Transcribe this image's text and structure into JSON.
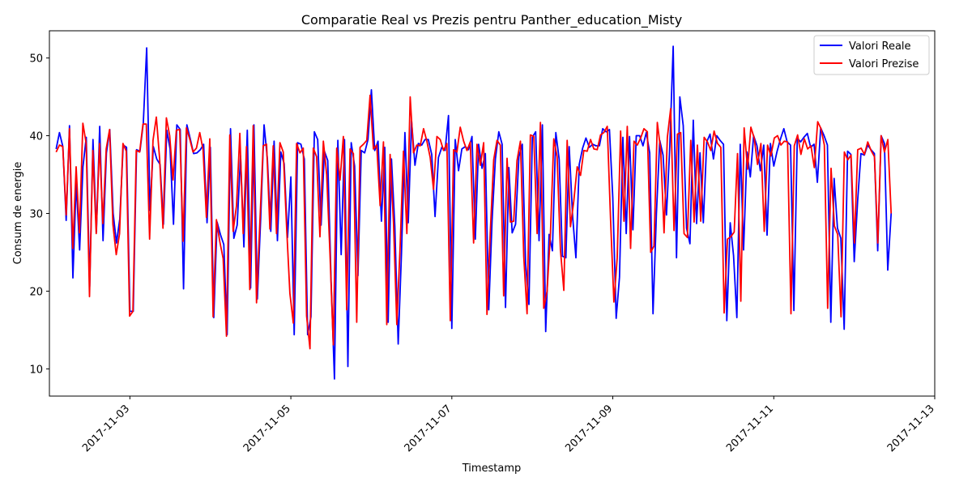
{
  "chart_data": {
    "type": "line",
    "title": "Comparatie Real vs Prezis pentru Panther_education_Misty",
    "xlabel": "Timestamp",
    "ylabel": "Consum de energie",
    "x_tick_labels": [
      "2017-11-03",
      "2017-11-05",
      "2017-11-07",
      "2017-11-09",
      "2017-11-11",
      "2017-11-13"
    ],
    "y_ticks": [
      10,
      20,
      30,
      40,
      50
    ],
    "xlim": [
      "2017-11-02T00:00",
      "2017-11-13T00:00"
    ],
    "ylim": [
      6.5,
      53.5
    ],
    "legend_position": "upper right",
    "grid": false,
    "x_start": "2017-11-02T02:00",
    "x_end": "2017-11-12T11:00",
    "series": [
      {
        "name": "Valori Reale",
        "color": "#0000ff",
        "values": [
          38.3,
          40.4,
          38.6,
          29.1,
          41.3,
          21.7,
          34.0,
          25.3,
          36.0,
          39.8,
          20.6,
          39.5,
          27.6,
          41.2,
          26.5,
          37.8,
          40.8,
          30.0,
          26.2,
          29.3,
          38.8,
          38.5,
          17.4,
          17.4,
          38.2,
          38.0,
          41.6,
          51.3,
          30.4,
          38.6,
          37.0,
          36.3,
          28.6,
          40.7,
          38.3,
          28.6,
          41.4,
          40.8,
          20.3,
          41.4,
          39.6,
          37.7,
          37.8,
          38.2,
          38.9,
          28.8,
          38.5,
          16.6,
          28.9,
          27.3,
          26.0,
          14.4,
          40.9,
          26.8,
          28.5,
          37.4,
          25.7,
          40.7,
          20.4,
          41.4,
          19.0,
          29.3,
          41.4,
          37.0,
          27.7,
          39.3,
          26.5,
          37.9,
          36.4,
          26.9,
          34.7,
          14.4,
          39.1,
          38.9,
          37.0,
          14.4,
          16.7,
          40.5,
          39.5,
          28.5,
          38.0,
          36.8,
          21.2,
          8.7,
          39.4,
          24.7,
          39.5,
          10.3,
          39.1,
          36.1,
          22.0,
          38.1,
          37.8,
          39.5,
          45.9,
          38.1,
          39.3,
          29.0,
          38.5,
          16.0,
          37.0,
          28.4,
          13.2,
          25.0,
          40.4,
          28.8,
          41.9,
          36.2,
          39.0,
          38.8,
          39.5,
          39.5,
          37.6,
          29.6,
          37.2,
          38.5,
          38.1,
          42.6,
          15.2,
          39.5,
          35.5,
          38.3,
          38.6,
          38.2,
          39.9,
          26.7,
          38.9,
          35.8,
          37.7,
          17.6,
          29.1,
          37.0,
          40.5,
          38.9,
          17.9,
          35.9,
          27.5,
          28.6,
          37.3,
          38.9,
          23.5,
          18.3,
          39.8,
          40.5,
          26.5,
          41.4,
          14.8,
          27.3,
          25.2,
          40.4,
          37.0,
          24.5,
          24.3,
          38.6,
          29.7,
          24.3,
          36.3,
          38.4,
          39.7,
          38.5,
          38.9,
          38.7,
          38.7,
          40.9,
          40.5,
          40.8,
          32.1,
          16.5,
          21.8,
          39.8,
          27.4,
          39.9,
          27.9,
          40.0,
          40.0,
          38.7,
          40.4,
          37.8,
          17.1,
          30.0,
          39.4,
          37.5,
          29.8,
          38.6,
          51.5,
          24.3,
          45.0,
          41.3,
          28.1,
          26.1,
          42.0,
          28.7,
          37.8,
          28.8,
          39.2,
          40.2,
          37.0,
          40.0,
          39.4,
          38.9,
          16.2,
          28.8,
          24.6,
          16.6,
          38.9,
          25.3,
          37.9,
          34.7,
          40.0,
          38.7,
          35.5,
          38.8,
          27.2,
          39.0,
          36.1,
          38.0,
          39.6,
          40.9,
          39.2,
          38.8,
          17.5,
          39.7,
          39.2,
          39.8,
          40.3,
          38.5,
          38.9,
          34.0,
          41.0,
          40.0,
          38.8,
          16.0,
          34.5,
          28.1,
          26.8,
          15.1,
          38.0,
          37.6,
          23.8,
          31.6,
          37.7,
          37.5,
          38.8,
          38.2,
          37.7,
          25.2,
          40.0,
          39.0,
          22.7,
          30.0
        ]
      },
      {
        "name": "Valori Prezise",
        "color": "#ff0000",
        "values": [
          37.9,
          38.8,
          38.6,
          29.8,
          40.9,
          25.5,
          36.0,
          27.5,
          41.6,
          39.0,
          19.3,
          38.1,
          27.4,
          39.0,
          28.7,
          38.3,
          40.8,
          28.6,
          24.7,
          27.4,
          39.0,
          38.0,
          16.8,
          17.4,
          38.1,
          37.9,
          41.5,
          41.5,
          26.7,
          39.4,
          42.4,
          37.0,
          28.1,
          42.3,
          40.0,
          34.3,
          40.7,
          40.8,
          26.4,
          41.0,
          39.6,
          37.9,
          38.4,
          40.4,
          38.2,
          29.5,
          39.6,
          16.7,
          29.2,
          26.4,
          24.2,
          14.2,
          40.1,
          27.7,
          31.0,
          40.3,
          27.4,
          38.6,
          20.2,
          41.3,
          18.5,
          28.8,
          38.7,
          38.9,
          28.0,
          38.7,
          27.4,
          39.1,
          37.9,
          28.3,
          19.7,
          15.9,
          39.0,
          37.8,
          38.4,
          16.8,
          12.6,
          38.4,
          37.3,
          27.0,
          39.3,
          35.0,
          24.8,
          13.1,
          38.4,
          34.3,
          39.9,
          17.6,
          38.3,
          37.7,
          16.0,
          38.5,
          38.9,
          39.4,
          45.2,
          38.3,
          38.8,
          31.0,
          39.2,
          15.7,
          37.6,
          28.8,
          15.7,
          25.8,
          38.0,
          27.4,
          45.0,
          37.8,
          38.8,
          38.7,
          40.9,
          39.3,
          37.2,
          33.1,
          39.9,
          39.5,
          38.1,
          39.0,
          16.2,
          38.2,
          37.9,
          41.1,
          39.3,
          38.1,
          39.2,
          26.2,
          38.9,
          36.2,
          39.1,
          17.0,
          27.6,
          36.9,
          39.4,
          38.8,
          19.4,
          37.1,
          28.9,
          29.0,
          36.8,
          39.3,
          24.5,
          17.1,
          40.1,
          39.9,
          27.4,
          41.7,
          17.8,
          20.0,
          27.5,
          39.6,
          37.3,
          25.3,
          20.1,
          39.4,
          28.3,
          31.6,
          36.0,
          34.9,
          38.1,
          38.0,
          39.5,
          38.3,
          38.2,
          40.1,
          40.4,
          41.2,
          29.2,
          18.6,
          24.3,
          40.6,
          29.0,
          41.2,
          25.5,
          39.3,
          38.8,
          39.7,
          40.9,
          40.5,
          25.0,
          25.8,
          41.7,
          38.1,
          27.5,
          39.8,
          43.5,
          27.8,
          40.2,
          40.4,
          27.4,
          26.9,
          39.4,
          28.9,
          38.8,
          29.0,
          39.8,
          39.2,
          38.1,
          40.6,
          39.0,
          38.5,
          17.2,
          26.7,
          27.0,
          27.6,
          37.7,
          18.7,
          41.0,
          35.7,
          41.1,
          39.7,
          36.3,
          39.0,
          27.7,
          38.8,
          37.4,
          39.7,
          40.0,
          38.8,
          39.3,
          39.2,
          17.1,
          38.7,
          40.1,
          37.6,
          39.6,
          38.3,
          38.7,
          35.9,
          41.8,
          40.9,
          38.8,
          17.8,
          35.8,
          28.4,
          27.3,
          16.7,
          37.9,
          36.9,
          37.5,
          26.2,
          38.2,
          38.4,
          37.6,
          39.2,
          38.1,
          37.3,
          26.2,
          40.0,
          37.9,
          39.5,
          30.0
        ]
      }
    ]
  }
}
